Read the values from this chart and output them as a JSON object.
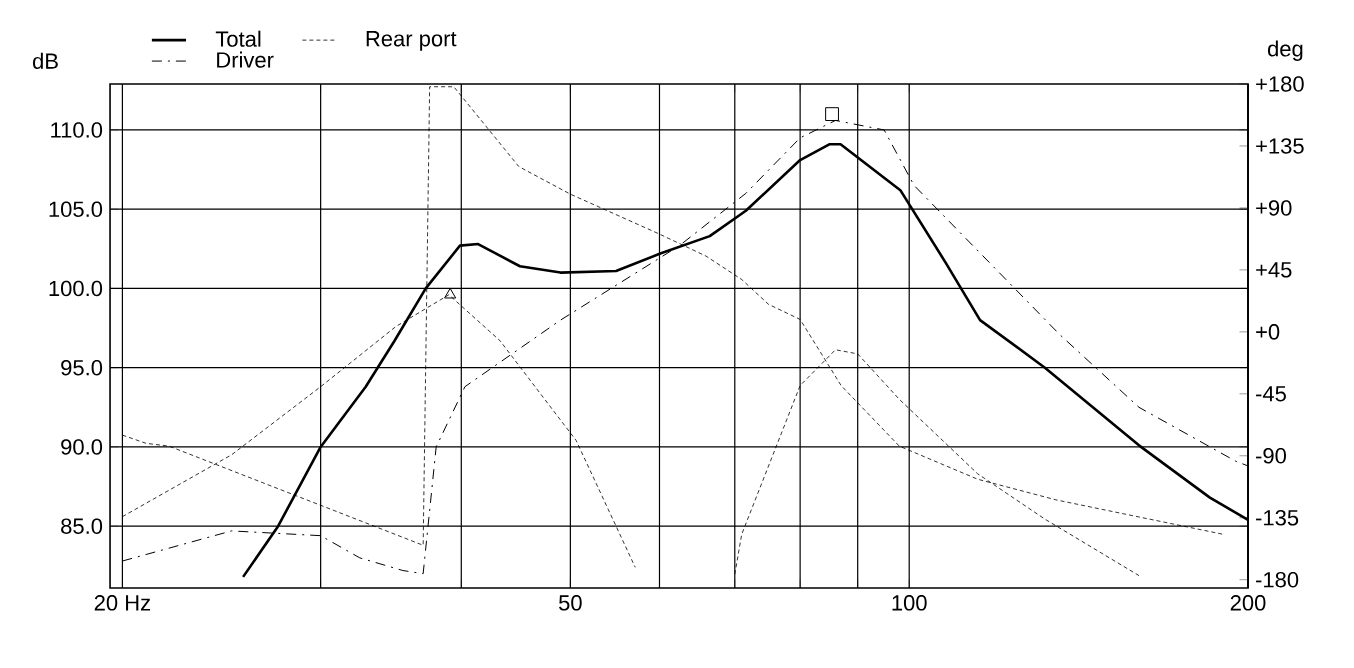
{
  "chart_data": {
    "type": "line",
    "ylabel": "dB",
    "y2label": "deg",
    "xlim": [
      19.5,
      200
    ],
    "ylim": [
      81.1,
      112.9
    ],
    "y2lim": [
      -186,
      180
    ],
    "log": "x",
    "xticks": [
      {
        "value": 20,
        "label": "20 Hz"
      },
      {
        "value": 30,
        "label": null
      },
      {
        "value": 40,
        "label": null
      },
      50,
      {
        "value": 60,
        "label": null
      },
      {
        "value": 70,
        "label": null
      },
      {
        "value": 80,
        "label": null
      },
      {
        "value": 90,
        "label": null
      },
      100,
      200
    ],
    "yticks": [
      {
        "value": 85,
        "label": "85.0"
      },
      {
        "value": 90,
        "label": "90.0"
      },
      {
        "value": 95,
        "label": "95.0"
      },
      {
        "value": 100,
        "label": "100.0"
      },
      {
        "value": 105,
        "label": "105.0"
      },
      {
        "value": 110,
        "label": "110.0"
      }
    ],
    "y2ticks": [
      {
        "value": -180,
        "label": "-180"
      },
      {
        "value": -135,
        "label": "-135"
      },
      {
        "value": -90,
        "label": "-90"
      },
      {
        "value": -45,
        "label": "-45"
      },
      {
        "value": 0,
        "label": "+0"
      },
      {
        "value": 45,
        "label": "+45"
      },
      {
        "value": 90,
        "label": "+90"
      },
      {
        "value": 135,
        "label": "+135"
      },
      {
        "value": 180,
        "label": "+180"
      }
    ],
    "grid": true,
    "legend": "top left",
    "series": [
      {
        "name": "Total",
        "color": "#000000",
        "line_style": "solid",
        "x": [
          25.6,
          27.5,
          30,
          32.9,
          34.9,
          37.2,
          39.9,
          41.4,
          45.1,
          49,
          54.9,
          60.1,
          66.5,
          71.6,
          80,
          85,
          86.9,
          98.2,
          107.8,
          115.6,
          132,
          160,
          185,
          200
        ],
        "values": [
          81.8,
          85,
          90,
          93.8,
          96.7,
          100,
          102.7,
          102.8,
          101.4,
          101,
          101.1,
          102.2,
          103.3,
          104.9,
          108.1,
          109.1,
          109.1,
          106.2,
          101.6,
          98,
          95,
          90.1,
          86.8,
          85.4
        ]
      },
      {
        "name": "Driver",
        "color": "#000000",
        "line_style": "dashed",
        "x": [
          20,
          25,
          30,
          32.5,
          35.5,
          37,
          38,
          40.3,
          49,
          62.5,
          71.6,
          80,
          86,
          95,
          101,
          136,
          160,
          195,
          200
        ],
        "values": [
          82.8,
          84.7,
          84.4,
          83,
          82.2,
          82,
          90,
          93.8,
          98,
          102.7,
          106,
          109.5,
          110.6,
          110,
          106.5,
          97.1,
          92.5,
          89.1,
          88.8
        ]
      },
      {
        "name": "Rear port",
        "color": "#000000",
        "line_style": "dotted",
        "x": [
          20,
          25,
          30,
          35,
          39,
          43.3,
          50.6,
          57.1
        ],
        "values": [
          85.6,
          89.5,
          93.8,
          97.6,
          99.6,
          96.7,
          90.4,
          82.4
        ]
      },
      {
        "type": "scatter",
        "marker": "square",
        "color": "#000000",
        "x": [
          85.4
        ],
        "values": [
          111.0
        ]
      },
      {
        "type": "scatter",
        "marker": "triangle",
        "color": "#000000",
        "x": [
          39.1
        ],
        "values": [
          99.6
        ]
      },
      {
        "axis": "y2",
        "color": "#000000",
        "line_style": "dotted",
        "x": [
          20,
          21,
          22,
          37,
          37.5,
          39.4,
          45,
          50,
          60,
          66,
          71,
          75,
          80,
          87,
          98,
          115,
          135,
          190
        ],
        "values": [
          -75,
          -81,
          -83,
          -155,
          178,
          178,
          120,
          100,
          71,
          55,
          38,
          20,
          9,
          -39,
          -83,
          -107,
          -122,
          -147
        ]
      },
      {
        "axis": "y2",
        "color": "#000000",
        "line_style": "dotted",
        "x": [
          70,
          71,
          80,
          86,
          90,
          98,
          115,
          132,
          160
        ],
        "values": [
          -176,
          -147,
          -39,
          -13,
          -16,
          -49,
          -103,
          -136,
          -177
        ]
      }
    ]
  }
}
